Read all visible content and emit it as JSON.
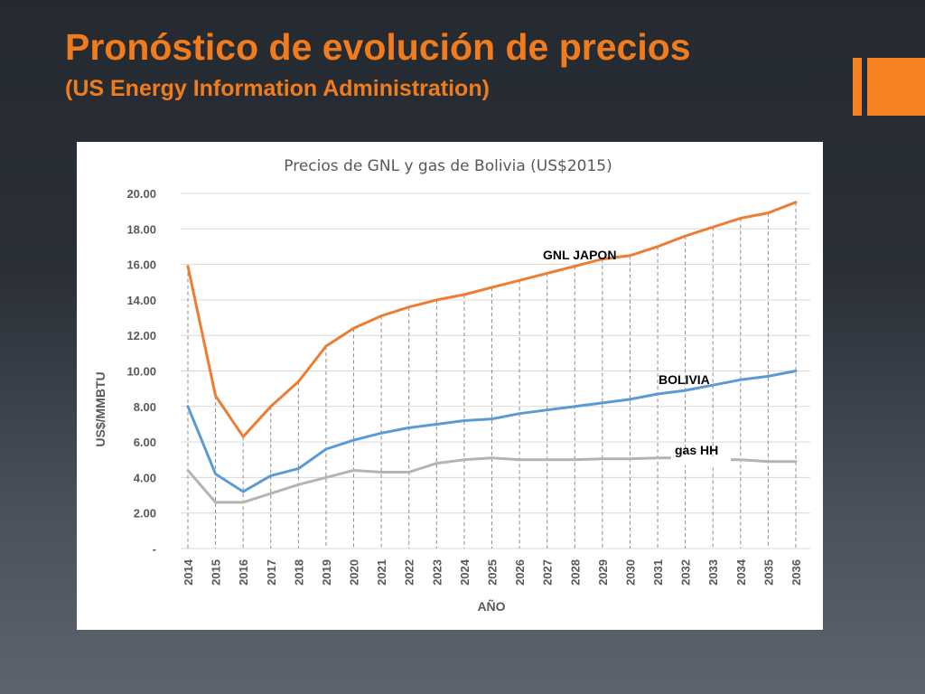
{
  "slide": {
    "title": "Pronóstico de evolución de precios",
    "subtitle": "(US Energy Information Administration)",
    "title_color": "#f07c1e",
    "subtitle_color": "#f07c1e",
    "accent_color": "#f58220"
  },
  "chart_data": {
    "type": "line",
    "title": "Precios de GNL y gas de Bolivia (US$2015)",
    "xlabel": "AÑO",
    "ylabel": "US$/MMBTU",
    "ylim": [
      0,
      20
    ],
    "y_ticks": [
      0,
      2,
      4,
      6,
      8,
      10,
      12,
      14,
      16,
      18,
      20
    ],
    "y_tick_labels": [
      "-",
      "2.00",
      "4.00",
      "6.00",
      "8.00",
      "10.00",
      "12.00",
      "14.00",
      "16.00",
      "18.00",
      "20.00"
    ],
    "grid": true,
    "x": [
      "2014",
      "2015",
      "2016",
      "2017",
      "2018",
      "2019",
      "2020",
      "2021",
      "2022",
      "2023",
      "2024",
      "2025",
      "2026",
      "2027",
      "2028",
      "2029",
      "2030",
      "2031",
      "2032",
      "2033",
      "2034",
      "2035",
      "2036"
    ],
    "series": [
      {
        "name": "GNL JAPON",
        "color": "#ed7d31",
        "values": [
          15.9,
          8.6,
          6.3,
          8.0,
          9.4,
          11.4,
          12.4,
          13.1,
          13.6,
          14.0,
          14.3,
          14.7,
          15.1,
          15.5,
          15.9,
          16.3,
          16.5,
          17.0,
          17.6,
          18.1,
          18.6,
          18.9,
          19.5
        ]
      },
      {
        "name": "BOLIVIA",
        "color": "#5b9bd5",
        "values": [
          8.0,
          4.2,
          3.2,
          4.1,
          4.5,
          5.6,
          6.1,
          6.5,
          6.8,
          7.0,
          7.2,
          7.3,
          7.6,
          7.8,
          8.0,
          8.2,
          8.4,
          8.7,
          8.9,
          9.2,
          9.5,
          9.7,
          10.0
        ]
      },
      {
        "name": "gas HH",
        "color": "#b4b4b4",
        "values": [
          4.4,
          2.6,
          2.6,
          3.1,
          3.6,
          4.0,
          4.4,
          4.3,
          4.3,
          4.8,
          5.0,
          5.1,
          5.0,
          5.0,
          5.0,
          5.05,
          5.05,
          5.1,
          5.1,
          5.0,
          5.0,
          4.9,
          4.9
        ]
      }
    ]
  }
}
